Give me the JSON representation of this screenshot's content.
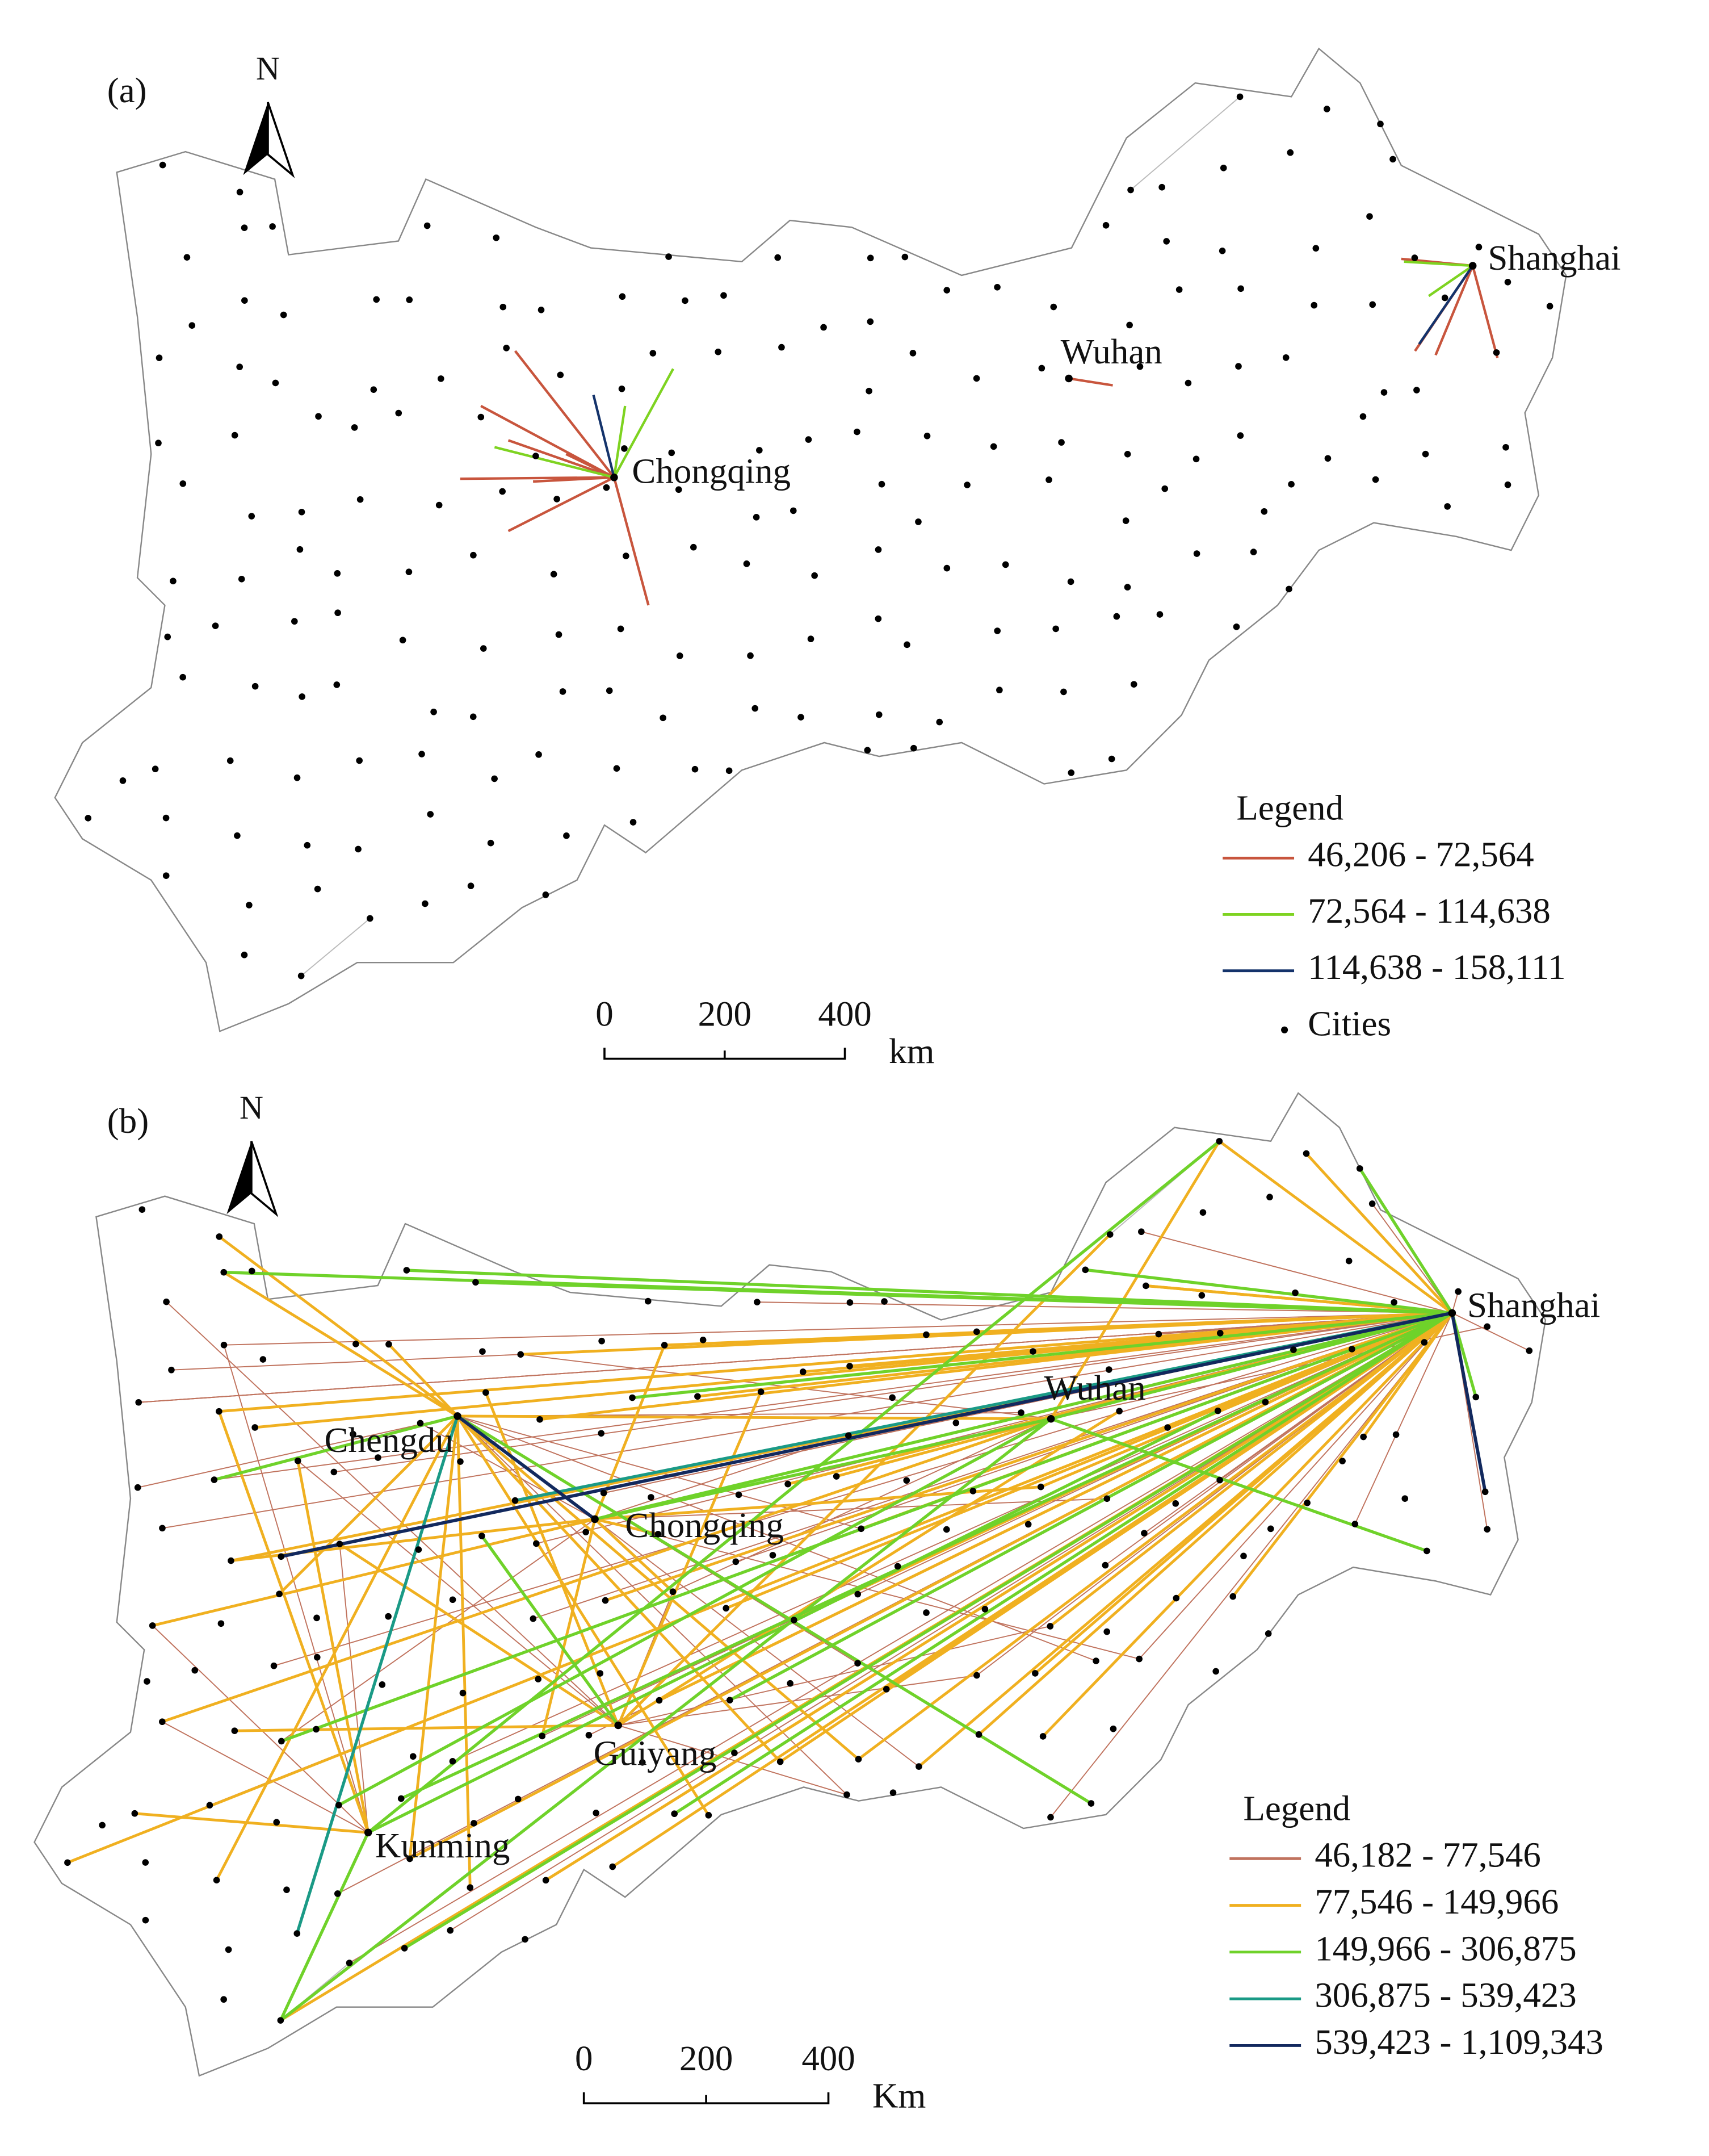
{
  "panels": [
    {
      "label": "(a)",
      "north": "N",
      "cities": [
        "Chongqing",
        "Wuhan",
        "Shanghai"
      ],
      "legend": {
        "title": "Legend",
        "items": [
          {
            "label": "46,206 - 72,564",
            "color": "#c8553d"
          },
          {
            "label": "72,564 - 114,638",
            "color": "#7ed321"
          },
          {
            "label": "114,638 - 158,111",
            "color": "#14336b"
          }
        ],
        "points": "Cities"
      },
      "scale": {
        "ticks": [
          "0",
          "200",
          "400"
        ],
        "unit": "km"
      }
    },
    {
      "label": "(b)",
      "north": "N",
      "cities": [
        "Chengdu",
        "Chongqing",
        "Wuhan",
        "Shanghai",
        "Guiyang",
        "Kunming"
      ],
      "legend": {
        "title": "Legend",
        "items": [
          {
            "label": "46,182 - 77,546",
            "color": "#c0735e"
          },
          {
            "label": "77,546 - 149,966",
            "color": "#f0b020"
          },
          {
            "label": "149,966 - 306,875",
            "color": "#6fd22a"
          },
          {
            "label": "306,875 - 539,423",
            "color": "#1a9a86"
          },
          {
            "label": "539,423 - 1,109,343",
            "color": "#12295e"
          }
        ]
      },
      "scale": {
        "ticks": [
          "0",
          "200",
          "400"
        ],
        "unit": "Km"
      }
    }
  ]
}
